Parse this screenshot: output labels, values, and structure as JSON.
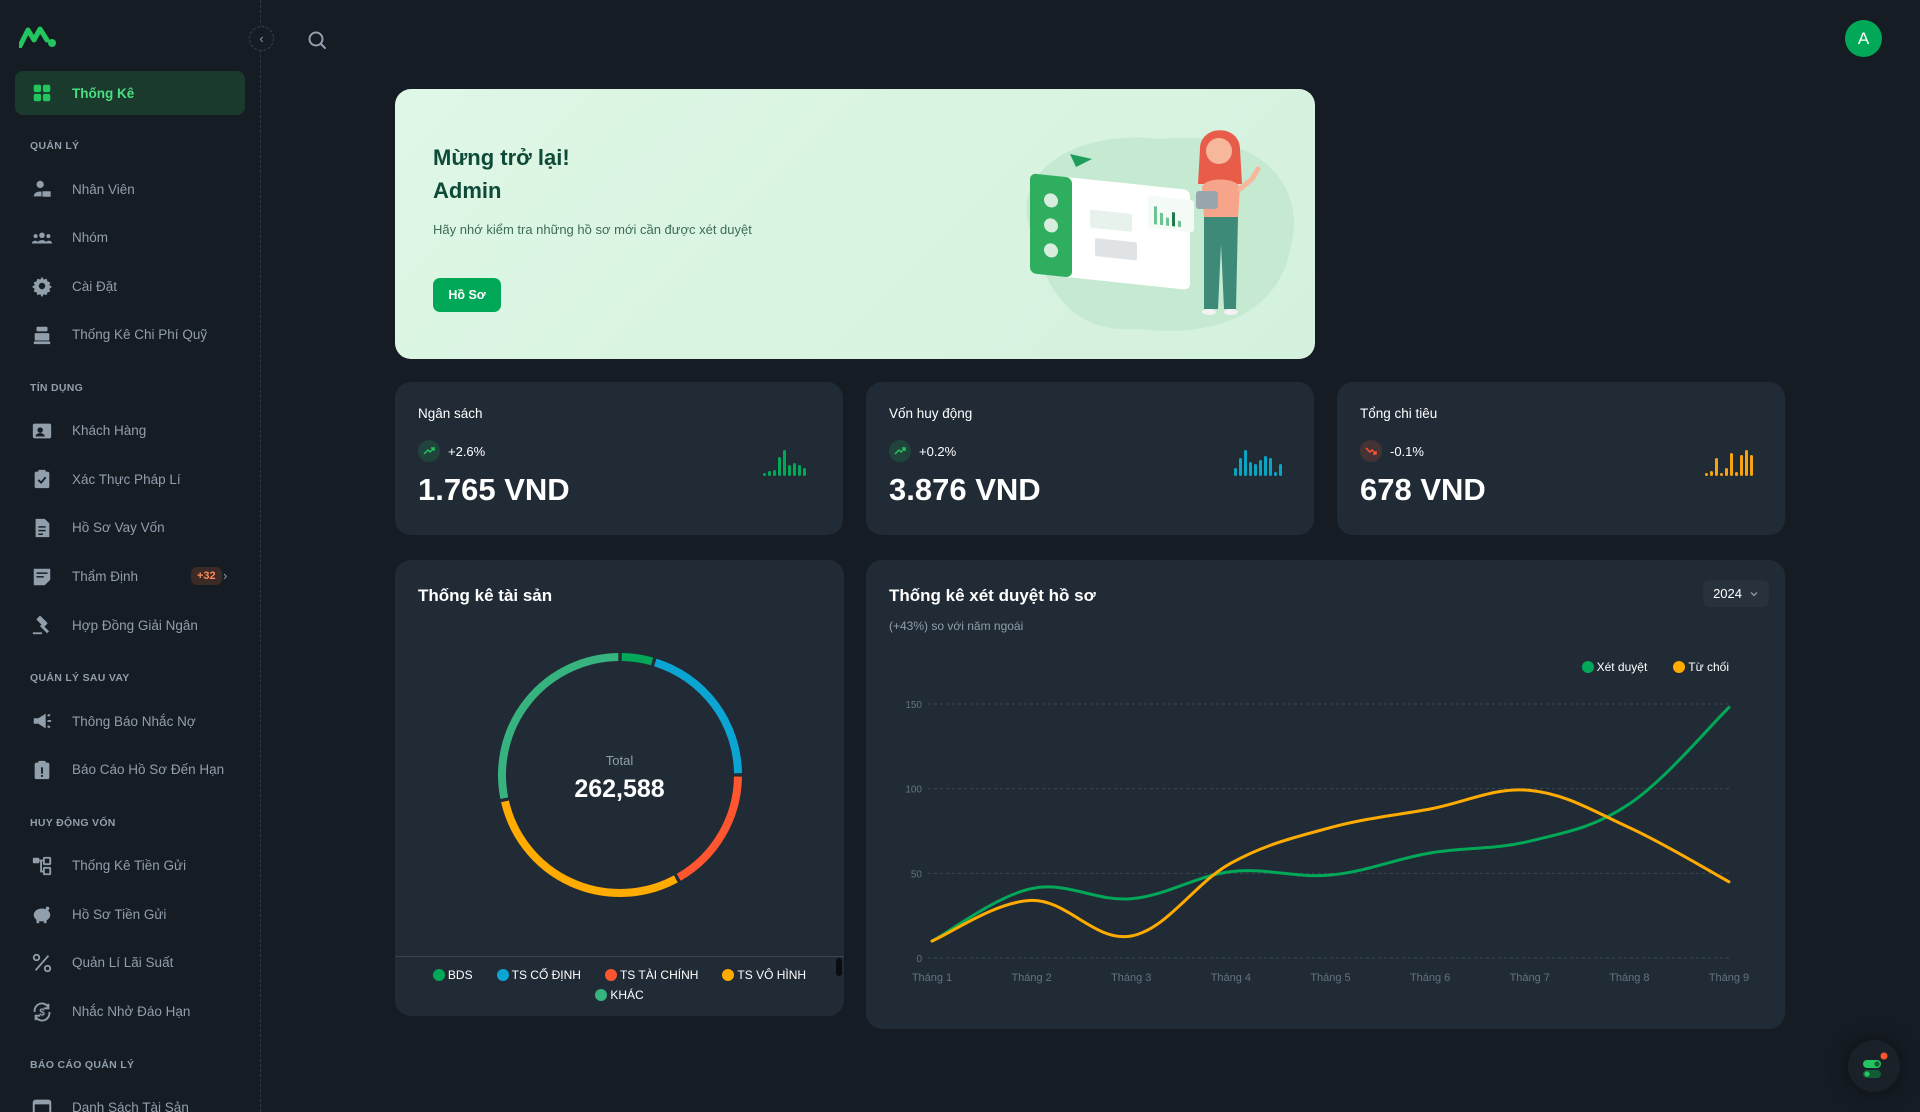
{
  "sidebar": {
    "logo_icon": "brand-m-logo",
    "collapse_icon": "chevron-left-icon",
    "active": {
      "label": "Thống Kê",
      "icon": "dashboard-grid-icon"
    },
    "sections": [
      {
        "title": "QUẢN LÝ",
        "items": [
          {
            "label": "Nhân Viên",
            "icon": "employee-badge-icon"
          },
          {
            "label": "Nhóm",
            "icon": "group-icon"
          },
          {
            "label": "Cài Đặt",
            "icon": "gear-icon"
          },
          {
            "label": "Thống Kê Chi Phí Quỹ",
            "icon": "cash-register-icon"
          }
        ]
      },
      {
        "title": "TÍN DỤNG",
        "items": [
          {
            "label": "Khách Hàng",
            "icon": "customer-card-icon"
          },
          {
            "label": "Xác Thực Pháp Lí",
            "icon": "clipboard-check-icon"
          },
          {
            "label": "Hồ Sơ Vay Vốn",
            "icon": "document-icon"
          },
          {
            "label": "Thẩm Định",
            "icon": "note-edit-icon",
            "badge": "+32"
          },
          {
            "label": "Hợp Đồng Giải Ngân",
            "icon": "gavel-icon"
          }
        ]
      },
      {
        "title": "QUẢN LÝ SAU VAY",
        "items": [
          {
            "label": "Thông Báo Nhắc Nợ",
            "icon": "megaphone-icon"
          },
          {
            "label": "Báo Cáo Hồ Sơ Đến Hạn",
            "icon": "clipboard-alert-icon"
          }
        ]
      },
      {
        "title": "HUY ĐỘNG VỐN",
        "items": [
          {
            "label": "Thống Kê Tiền Gửi",
            "icon": "hierarchy-icon"
          },
          {
            "label": "Hồ Sơ Tiền Gửi",
            "icon": "piggy-bank-icon"
          },
          {
            "label": "Quản Lí Lãi Suất",
            "icon": "percent-icon"
          },
          {
            "label": "Nhắc Nhở Đáo Hạn",
            "icon": "dollar-cycle-icon"
          }
        ]
      },
      {
        "title": "BÁO CÁO QUẢN LÝ",
        "items": [
          {
            "label": "Danh Sách Tài Sản",
            "icon": "window-icon"
          }
        ]
      }
    ]
  },
  "topbar": {
    "search_icon": "search-icon",
    "avatar_initial": "A"
  },
  "welcome": {
    "title_line1": "Mừng trở lại!",
    "title_line2": "Admin",
    "description": "Hãy nhớ kiểm tra những hồ sơ mới cần được xét duyệt",
    "button_label": "Hồ Sơ"
  },
  "stats": [
    {
      "title": "Ngân sách",
      "change": "+2.6%",
      "direction": "up",
      "value": "1.765 VND",
      "color": "#00a857",
      "spark": [
        2,
        5,
        6,
        20,
        28,
        12,
        14,
        12,
        9
      ]
    },
    {
      "title": "Vốn huy động",
      "change": "+0.2%",
      "direction": "up",
      "value": "3.876 VND",
      "color": "#0ba5c4",
      "spark": [
        8,
        18,
        26,
        14,
        12,
        16,
        20,
        18,
        4,
        12
      ]
    },
    {
      "title": "Tổng chi tiêu",
      "change": "-0.1%",
      "direction": "down",
      "value": "678 VND",
      "color": "#f5a311",
      "spark": [
        4,
        6,
        22,
        4,
        10,
        28,
        5,
        26,
        32,
        26
      ]
    }
  ],
  "asset_card": {
    "title": "Thống kê tài sản",
    "total_label": "Total",
    "total_value": "262,588"
  },
  "approval_card": {
    "title": "Thống kê xét duyệt hồ sơ",
    "subtitle": "(+43%) so với năm ngoái",
    "year": "2024"
  },
  "chart_data": [
    {
      "type": "pie",
      "title": "Thống kê tài sản",
      "donut": true,
      "center_label": "Total",
      "total": 262588,
      "categories": [
        "BDS",
        "TS CỐ ĐỊNH",
        "TS TÀI CHÍNH",
        "TS VÔ HÌNH",
        "KHÁC"
      ],
      "values": [
        12100,
        53500,
        44500,
        78000,
        74488
      ],
      "colors": [
        "#00a857",
        "#0ba5d4",
        "#ff5630",
        "#ffab00",
        "#36b37e"
      ],
      "legend_position": "bottom"
    },
    {
      "type": "line",
      "title": "Thống kê xét duyệt hồ sơ",
      "subtitle": "(+43%) so với năm ngoái",
      "categories": [
        "Tháng 1",
        "Tháng 2",
        "Tháng 3",
        "Tháng 4",
        "Tháng 5",
        "Tháng 6",
        "Tháng 7",
        "Tháng 8",
        "Tháng 9"
      ],
      "series": [
        {
          "name": "Xét duyệt",
          "color": "#00a857",
          "values": [
            10,
            41,
            35,
            51,
            49,
            62,
            69,
            91,
            148
          ]
        },
        {
          "name": "Từ chối",
          "color": "#ffab00",
          "values": [
            10,
            34,
            13,
            56,
            77,
            88,
            99,
            77,
            45
          ]
        }
      ],
      "yticks": [
        0,
        50,
        100,
        150
      ],
      "ylim": [
        0,
        150
      ],
      "grid": true,
      "legend_position": "top-right",
      "xlabel": "",
      "ylabel": ""
    }
  ],
  "fab": {
    "icon": "settings-toggle-icon"
  }
}
